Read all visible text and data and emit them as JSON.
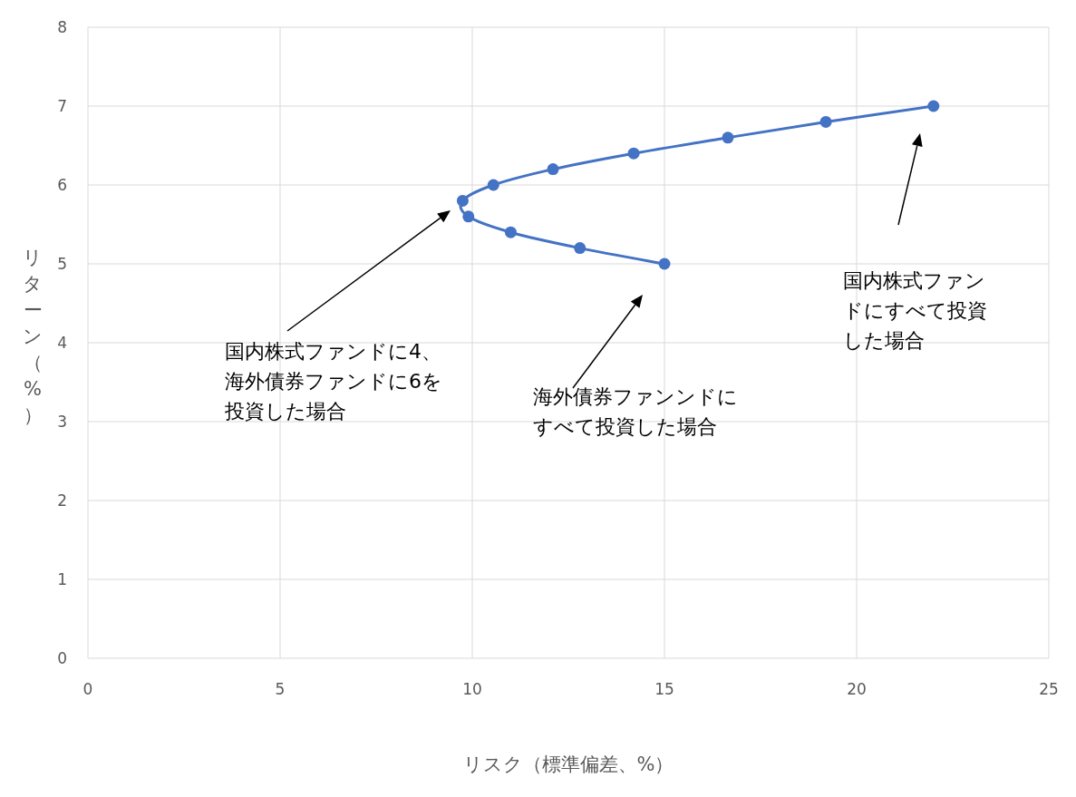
{
  "chart_data": {
    "type": "line",
    "xlabel": "リスク（標準偏差、%）",
    "ylabel": "リターン（%）",
    "x": [
      15,
      12.8,
      11,
      9.9,
      9.75,
      10.55,
      12.1,
      14.2,
      16.65,
      19.2,
      22
    ],
    "values": [
      5,
      5.2,
      5.4,
      5.6,
      5.8,
      6,
      6.2,
      6.4,
      6.6,
      6.8,
      7
    ],
    "color": "#4472c4",
    "marker": "circle",
    "line_style": "solid",
    "xlim": [
      0,
      25
    ],
    "ylim": [
      0,
      8
    ],
    "xticks": [
      0,
      5,
      10,
      15,
      20,
      25
    ],
    "yticks": [
      0,
      1,
      2,
      3,
      4,
      5,
      6,
      7,
      8
    ],
    "grid": true,
    "annotations": [
      "国内株式ファンドに4、海外債券ファンドに6を投資した場合",
      "海外債券ファンンドにすべて投資した場合",
      "国内株式ファンドにすべて投資した場合"
    ]
  }
}
